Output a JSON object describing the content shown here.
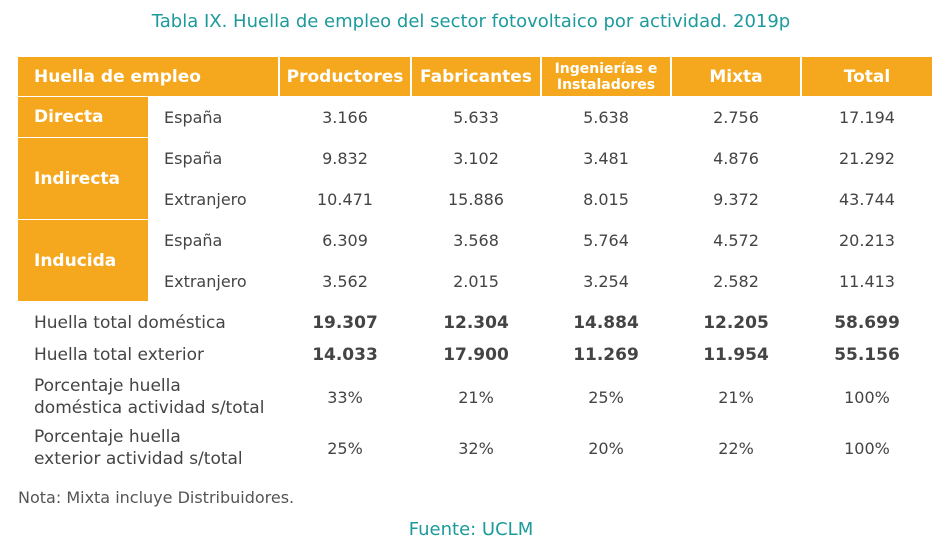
{
  "title": "Tabla IX. Huella de empleo del sector fotovoltaico por actividad. 2019p",
  "table": {
    "header": [
      "Huella de empleo",
      "Productores",
      "Fabricantes",
      "Ingenierías e Instaladores",
      "Mixta",
      "Total"
    ],
    "groups": [
      {
        "label": "Directa",
        "rows": [
          {
            "sub": "España",
            "values": [
              "3.166",
              "5.633",
              "5.638",
              "2.756",
              "17.194"
            ]
          }
        ]
      },
      {
        "label": "Indirecta",
        "rows": [
          {
            "sub": "España",
            "values": [
              "9.832",
              "3.102",
              "3.481",
              "4.876",
              "21.292"
            ]
          },
          {
            "sub": "Extranjero",
            "values": [
              "10.471",
              "15.886",
              "8.015",
              "9.372",
              "43.744"
            ]
          }
        ]
      },
      {
        "label": "Inducida",
        "rows": [
          {
            "sub": "España",
            "values": [
              "6.309",
              "3.568",
              "5.764",
              "4.572",
              "20.213"
            ]
          },
          {
            "sub": "Extranjero",
            "values": [
              "3.562",
              "2.015",
              "3.254",
              "2.582",
              "11.413"
            ]
          }
        ]
      }
    ],
    "totals": [
      {
        "label": "Huella total doméstica",
        "values": [
          "19.307",
          "12.304",
          "14.884",
          "12.205",
          "58.699"
        ]
      },
      {
        "label": "Huella total exterior",
        "values": [
          "14.033",
          "17.900",
          "11.269",
          "11.954",
          "55.156"
        ]
      }
    ],
    "percentages": [
      {
        "label": [
          "Porcentaje huella",
          "doméstica actividad s/total"
        ],
        "values": [
          "33%",
          "21%",
          "25%",
          "21%",
          "100%"
        ]
      },
      {
        "label": [
          "Porcentaje huella",
          "exterior actividad s/total"
        ],
        "values": [
          "25%",
          "32%",
          "20%",
          "22%",
          "100%"
        ]
      }
    ]
  },
  "note": "Nota: Mixta incluye Distribuidores.",
  "source": "Fuente: UCLM"
}
